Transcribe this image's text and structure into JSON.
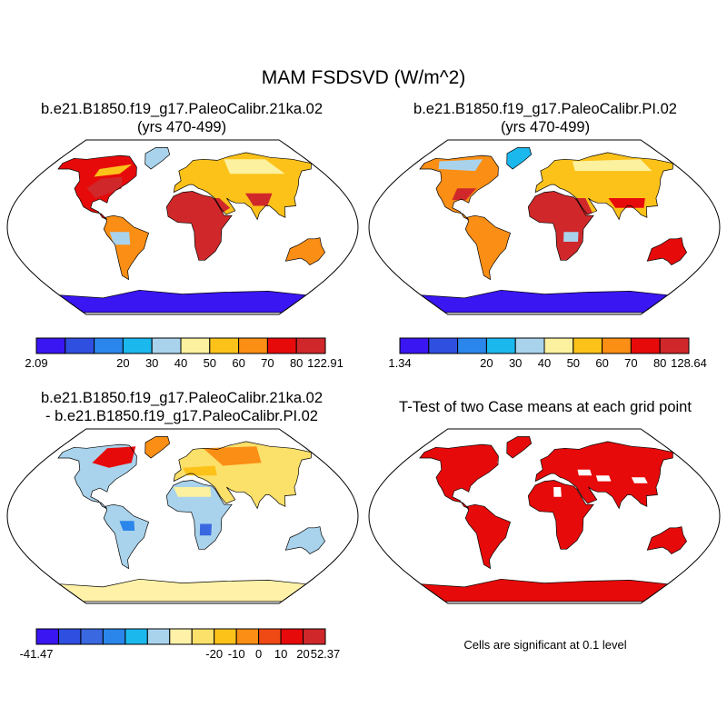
{
  "figure": {
    "main_title": "MAM FSDSVD (W/m^2)",
    "panels": [
      {
        "id": "case1",
        "title_line1": "b.e21.B1850.f19_g17.PaleoCalibr.21ka.02",
        "title_line2": "(yrs 470-499)",
        "colorbar": {
          "colors": [
            "#3a16f2",
            "#2f4fe0",
            "#2a86ea",
            "#1bb8ee",
            "#a9d3ec",
            "#fbf19e",
            "#fcc21a",
            "#fb8e14",
            "#e70a0a",
            "#d0282a"
          ],
          "labels": [
            "2.09",
            "20",
            "30",
            "40",
            "50",
            "60",
            "70",
            "80",
            "122.91"
          ]
        }
      },
      {
        "id": "case2",
        "title_line1": "b.e21.B1850.f19_g17.PaleoCalibr.PI.02",
        "title_line2": "(yrs 470-499)",
        "colorbar": {
          "colors": [
            "#3a16f2",
            "#2f4fe0",
            "#2a86ea",
            "#1bb8ee",
            "#a9d3ec",
            "#fbf19e",
            "#fcc21a",
            "#fb8e14",
            "#e70a0a",
            "#d0282a"
          ],
          "labels": [
            "1.34",
            "20",
            "30",
            "40",
            "50",
            "60",
            "70",
            "80",
            "128.64"
          ]
        }
      },
      {
        "id": "difference",
        "title_line1": "b.e21.B1850.f19_g17.PaleoCalibr.21ka.02",
        "title_line2": "- b.e21.B1850.f19_g17.PaleoCalibr.PI.02",
        "colorbar": {
          "colors": [
            "#3a16f2",
            "#2f4fe0",
            "#3968e0",
            "#2a86ea",
            "#1bb8ee",
            "#a9d3ec",
            "#fff2a8",
            "#fbe06a",
            "#fcc21a",
            "#fb8e14",
            "#ef4a14",
            "#e70a0a",
            "#d0282a"
          ],
          "labels": [
            "-41.47",
            "-20",
            "-10",
            "0",
            "10",
            "20",
            "52.37"
          ]
        }
      },
      {
        "id": "ttest",
        "title_line1": "T-Test of two Case means at each grid point",
        "note": "Cells are significant at 0.1 level"
      }
    ]
  }
}
